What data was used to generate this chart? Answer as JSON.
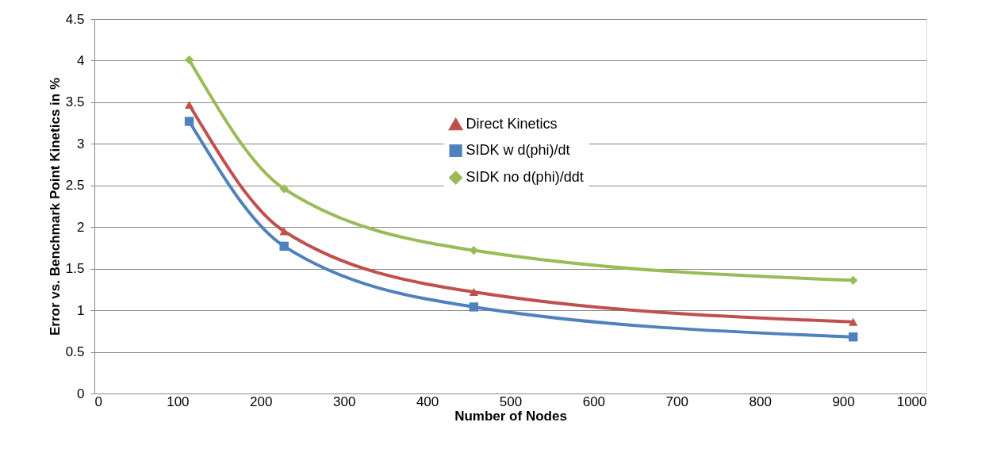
{
  "chart_data": {
    "type": "line",
    "xlabel": "Number of Nodes",
    "ylabel": "Error vs. Benchmark Point Kinetics in %",
    "x": [
      114,
      228,
      456,
      912
    ],
    "series": [
      {
        "name": "Direct Kinetics",
        "color": "#c0504d",
        "marker": "triangle",
        "values": [
          3.47,
          1.95,
          1.22,
          0.86
        ]
      },
      {
        "name": "SIDK w d(phi)/dt",
        "color": "#4f81bd",
        "marker": "square",
        "values": [
          3.27,
          1.77,
          1.04,
          0.68
        ]
      },
      {
        "name": "SIDK no d(phi)/ddt",
        "color": "#9bbb59",
        "marker": "diamond",
        "values": [
          4.01,
          2.46,
          1.72,
          1.36
        ]
      }
    ],
    "xlim": [
      0,
      1000
    ],
    "xticks": [
      0,
      100,
      200,
      300,
      400,
      500,
      600,
      700,
      800,
      900,
      1000
    ],
    "ylim": [
      0,
      4.5
    ],
    "yticks": [
      0,
      0.5,
      1,
      1.5,
      2,
      2.5,
      3,
      3.5,
      4,
      4.5
    ],
    "grid": "y",
    "legend": "top",
    "line_style": "solid"
  }
}
